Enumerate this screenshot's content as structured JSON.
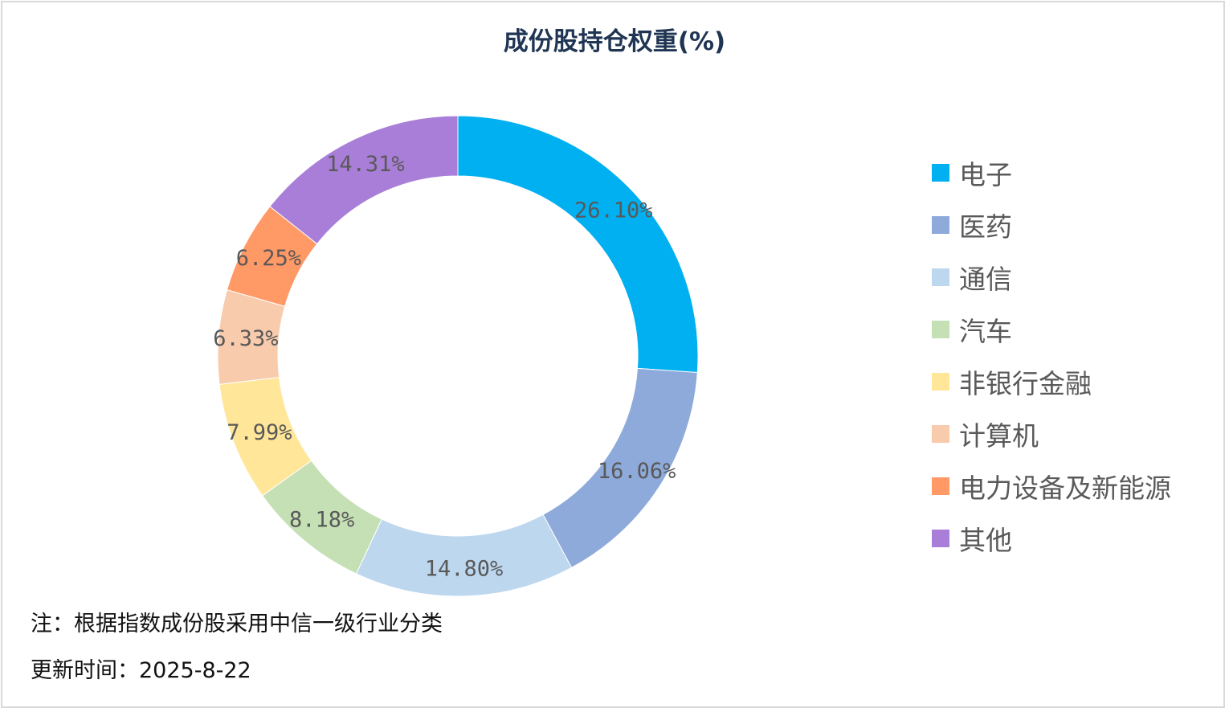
{
  "chart_data": {
    "type": "pie",
    "title": "成份股持仓权重(%)",
    "categories": [
      "电子",
      "医药",
      "通信",
      "汽车",
      "非银行金融",
      "计算机",
      "电力设备及新能源",
      "其他"
    ],
    "values": [
      26.1,
      16.06,
      14.8,
      8.18,
      7.99,
      6.33,
      6.25,
      14.31
    ],
    "labels": [
      "26.10%",
      "16.06%",
      "14.80%",
      "8.18%",
      "7.99%",
      "6.33%",
      "6.25%",
      "14.31%"
    ],
    "colors": [
      "#00b0f0",
      "#8eaadb",
      "#bdd7ee",
      "#c5e0b4",
      "#ffe699",
      "#f8cbad",
      "#ff9966",
      "#a97ed8"
    ],
    "legend_position": "right",
    "donut": true
  },
  "footer": {
    "note": "注：根据指数成份股采用中信一级行业分类",
    "update": "更新时间：2025-8-22"
  }
}
